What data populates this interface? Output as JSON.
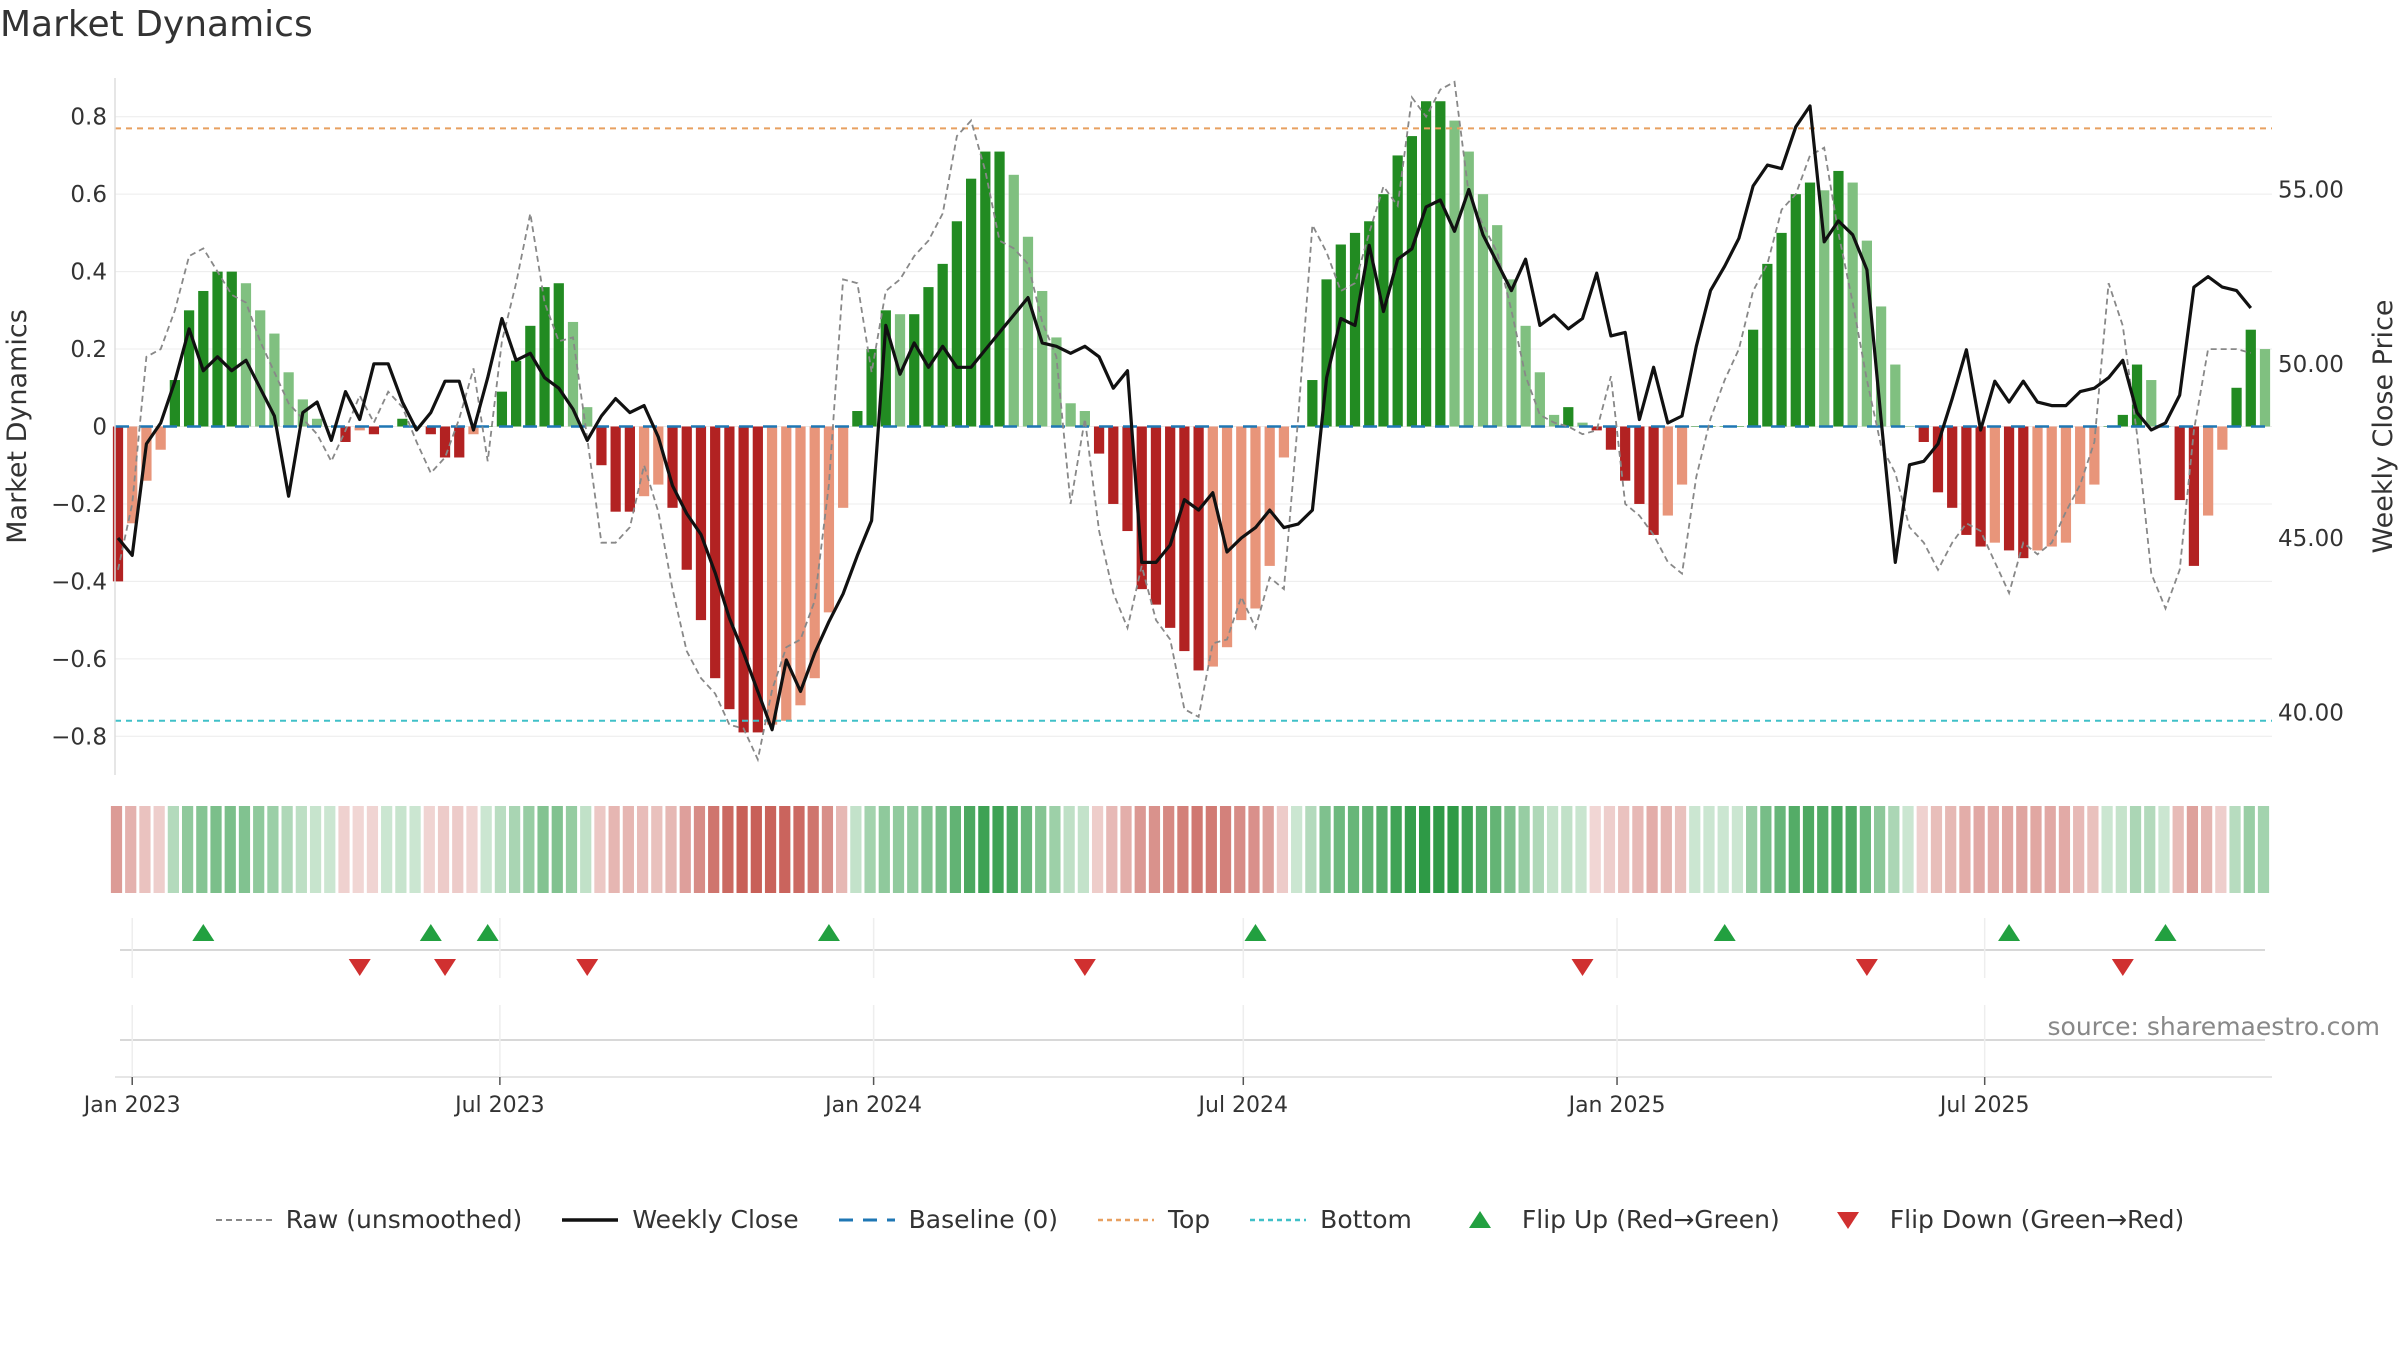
{
  "title": "Market Dynamics",
  "source": "source: sharemaestro.com",
  "colors": {
    "green_dark": "#228b22",
    "green_light": "#80c080",
    "red_dark": "#b22222",
    "red_light": "#e8957a",
    "close_line": "#111111",
    "raw_line": "#888888",
    "baseline": "#1f77b4",
    "top_line": "#e8a060",
    "bottom_line": "#40c0c8",
    "flip_up": "#22a040",
    "flip_down": "#d03030"
  },
  "legend": [
    {
      "label": "Raw (unsmoothed)",
      "icon": "dashed-gray-line-icon"
    },
    {
      "label": "Weekly Close",
      "icon": "solid-black-line-icon"
    },
    {
      "label": "Baseline (0)",
      "icon": "dashed-blue-line-icon"
    },
    {
      "label": "Top",
      "icon": "dotted-orange-line-icon"
    },
    {
      "label": "Bottom",
      "icon": "dotted-cyan-line-icon"
    },
    {
      "label": "Flip Up (Red→Green)",
      "icon": "triangle-up-icon"
    },
    {
      "label": "Flip Down (Green→Red)",
      "icon": "triangle-down-icon"
    }
  ],
  "chart_data": {
    "type": "bar",
    "y_left_label": "Market Dynamics",
    "y_right_label": "Weekly Close Price",
    "y_left_ticks": [
      "0.8",
      "0.6",
      "0.4",
      "0.2",
      "0",
      "−0.2",
      "−0.4",
      "−0.6",
      "−0.8"
    ],
    "y_left_tick_values": [
      0.8,
      0.6,
      0.4,
      0.2,
      0,
      -0.2,
      -0.4,
      -0.6,
      -0.8
    ],
    "y_right_ticks": [
      "55.00",
      "50.00",
      "45.00",
      "40.00"
    ],
    "y_right_tick_values": [
      55,
      50,
      45,
      40
    ],
    "ylim_left": [
      -0.9,
      0.9
    ],
    "ylim_right": [
      38.2,
      58.2
    ],
    "x_ticks": [
      "Jan 2023",
      "Jul 2023",
      "Jan 2024",
      "Jul 2024",
      "Jan 2025",
      "Jul 2025"
    ],
    "x_tick_dates": [
      "2023-01-01",
      "2023-07-01",
      "2024-01-01",
      "2024-07-01",
      "2025-01-01",
      "2025-07-01"
    ],
    "start_date": "2022-12-25",
    "week_step_days": 7,
    "top_threshold": 0.77,
    "bottom_threshold": -0.76,
    "baseline": 0,
    "dynamics": [
      -0.4,
      -0.25,
      -0.14,
      -0.06,
      0.12,
      0.3,
      0.35,
      0.4,
      0.4,
      0.37,
      0.3,
      0.24,
      0.14,
      0.07,
      0.02,
      0,
      -0.04,
      -0.01,
      -0.02,
      0,
      0.02,
      0,
      -0.02,
      -0.08,
      -0.08,
      -0.02,
      0,
      0.09,
      0.17,
      0.26,
      0.36,
      0.37,
      0.27,
      0.05,
      -0.1,
      -0.22,
      -0.22,
      -0.18,
      -0.15,
      -0.21,
      -0.37,
      -0.5,
      -0.65,
      -0.73,
      -0.79,
      -0.79,
      -0.77,
      -0.76,
      -0.72,
      -0.65,
      -0.48,
      -0.21,
      0.04,
      0.2,
      0.3,
      0.29,
      0.29,
      0.36,
      0.42,
      0.53,
      0.64,
      0.71,
      0.71,
      0.65,
      0.49,
      0.35,
      0.23,
      0.06,
      0.04,
      -0.07,
      -0.2,
      -0.27,
      -0.42,
      -0.46,
      -0.52,
      -0.58,
      -0.63,
      -0.62,
      -0.57,
      -0.5,
      -0.47,
      -0.36,
      -0.08,
      0,
      0.12,
      0.38,
      0.47,
      0.5,
      0.53,
      0.6,
      0.7,
      0.75,
      0.84,
      0.84,
      0.79,
      0.71,
      0.6,
      0.52,
      0.38,
      0.26,
      0.14,
      0.03,
      0.05,
      0.01,
      -0.01,
      -0.06,
      -0.14,
      -0.2,
      -0.28,
      -0.23,
      -0.15,
      0,
      0,
      0,
      0,
      0.25,
      0.42,
      0.5,
      0.6,
      0.63,
      0.61,
      0.66,
      0.63,
      0.48,
      0.31,
      0.16,
      0,
      -0.04,
      -0.17,
      -0.21,
      -0.28,
      -0.31,
      -0.3,
      -0.32,
      -0.34,
      -0.32,
      -0.31,
      -0.3,
      -0.2,
      -0.15,
      0,
      0.03,
      0.16,
      0.12,
      0,
      -0.19,
      -0.36,
      -0.23,
      -0.06,
      0.1,
      0.25,
      0.2
    ],
    "weekly_close": [
      45,
      44.5,
      47.7,
      48.3,
      49.5,
      51,
      49.8,
      50.2,
      49.8,
      50.1,
      49.3,
      48.5,
      46.2,
      48.6,
      48.9,
      47.8,
      49.2,
      48.4,
      50,
      50,
      48.9,
      48.1,
      48.6,
      49.5,
      49.5,
      48.1,
      49.6,
      51.3,
      50.1,
      50.3,
      49.6,
      49.3,
      48.7,
      47.8,
      48.5,
      49,
      48.6,
      48.8,
      47.9,
      46.5,
      45.7,
      45.1,
      44,
      42.7,
      41.7,
      40.6,
      39.5,
      41.5,
      40.6,
      41.7,
      42.6,
      43.4,
      44.5,
      45.5,
      51.1,
      49.7,
      50.6,
      49.9,
      50.5,
      49.9,
      49.9,
      50.4,
      50.9,
      51.4,
      51.9,
      50.6,
      50.5,
      50.3,
      50.5,
      50.2,
      49.3,
      49.8,
      44.3,
      44.3,
      44.8,
      46.1,
      45.8,
      46.3,
      44.6,
      45,
      45.3,
      45.8,
      45.3,
      45.4,
      45.8,
      49.6,
      51.3,
      51.1,
      53.4,
      51.5,
      53,
      53.3,
      54.5,
      54.7,
      53.8,
      55,
      53.7,
      52.9,
      52.1,
      53,
      51.1,
      51.4,
      51,
      51.3,
      52.6,
      50.8,
      50.9,
      48.4,
      49.9,
      48.3,
      48.5,
      50.5,
      52.1,
      52.8,
      53.6,
      55.1,
      55.7,
      55.6,
      56.8,
      57.4,
      53.5,
      54.1,
      53.7,
      52.7,
      48.4,
      44.3,
      47.1,
      47.2,
      47.7,
      49,
      50.4,
      48.1,
      49.5,
      48.9,
      49.5,
      48.9,
      48.8,
      48.8,
      49.2,
      49.3,
      49.6,
      50.1,
      48.6,
      48.1,
      48.3,
      49.1,
      52.2,
      52.5,
      52.2,
      52.1,
      51.6
    ],
    "raw": [
      -0.37,
      -0.2,
      0.18,
      0.2,
      0.3,
      0.44,
      0.46,
      0.4,
      0.34,
      0.32,
      0.22,
      0.14,
      0.06,
      0.02,
      -0.02,
      -0.09,
      -0.01,
      0.08,
      0.01,
      0.09,
      0.05,
      -0.04,
      -0.12,
      -0.08,
      0.02,
      0.15,
      -0.09,
      0.22,
      0.37,
      0.55,
      0.32,
      0.22,
      0.23,
      -0.03,
      -0.3,
      -0.3,
      -0.26,
      -0.1,
      -0.22,
      -0.42,
      -0.58,
      -0.65,
      -0.69,
      -0.77,
      -0.78,
      -0.86,
      -0.68,
      -0.57,
      -0.55,
      -0.45,
      -0.15,
      0.38,
      0.37,
      0.14,
      0.35,
      0.38,
      0.44,
      0.48,
      0.55,
      0.75,
      0.79,
      0.66,
      0.48,
      0.46,
      0.42,
      0.27,
      0.18,
      -0.2,
      0.02,
      -0.27,
      -0.43,
      -0.52,
      -0.36,
      -0.5,
      -0.55,
      -0.73,
      -0.75,
      -0.56,
      -0.55,
      -0.44,
      -0.52,
      -0.39,
      -0.42,
      0.02,
      0.52,
      0.45,
      0.35,
      0.37,
      0.5,
      0.62,
      0.57,
      0.85,
      0.8,
      0.87,
      0.89,
      0.6,
      0.52,
      0.45,
      0.3,
      0.13,
      0.03,
      0.01,
      0,
      -0.02,
      -0.01,
      0.13,
      -0.2,
      -0.23,
      -0.28,
      -0.35,
      -0.38,
      -0.13,
      0.02,
      0.12,
      0.2,
      0.35,
      0.42,
      0.56,
      0.6,
      0.7,
      0.72,
      0.5,
      0.32,
      0.12,
      -0.05,
      -0.12,
      -0.26,
      -0.3,
      -0.37,
      -0.3,
      -0.25,
      -0.27,
      -0.35,
      -0.43,
      -0.3,
      -0.33,
      -0.3,
      -0.22,
      -0.15,
      -0.04,
      0.37,
      0.26,
      -0.02,
      -0.38,
      -0.47,
      -0.37,
      -0.01,
      0.2,
      0.2,
      0.2,
      0.19
    ]
  },
  "flips": {
    "up_labels_count_note": "",
    "up_dates": [
      "2023-02-05",
      "2023-05-28",
      "2023-06-25",
      "2023-12-10",
      "2024-07-07",
      "2025-02-23",
      "2025-07-13",
      "2025-09-28"
    ],
    "down_dates": [
      "2023-04-23",
      "2023-06-04",
      "2023-08-13",
      "2024-04-14",
      "2024-12-15",
      "2025-05-04",
      "2025-09-07"
    ]
  }
}
